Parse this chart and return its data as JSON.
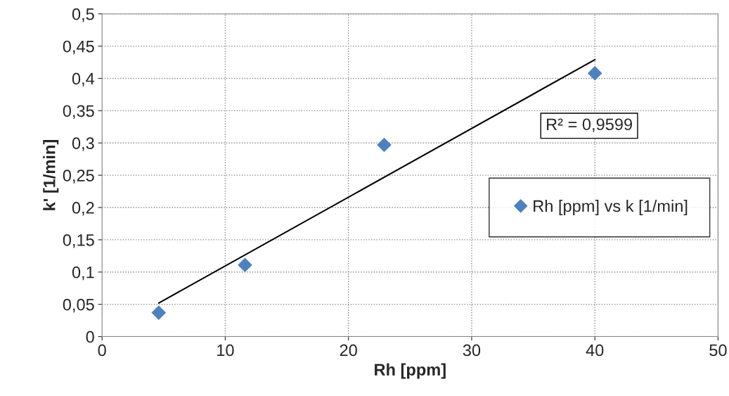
{
  "chart_data": {
    "type": "scatter",
    "xlabel": "Rh [ppm]",
    "ylabel": "k' [1/min]",
    "series": [
      {
        "name": "Rh [ppm] vs k [1/min]",
        "color": "#4f81bd",
        "marker": "diamond",
        "x": [
          4.6,
          11.6,
          22.9,
          40
        ],
        "values": [
          0.037,
          0.111,
          0.297,
          0.408
        ]
      },
      {
        "type": "line",
        "color": "#000000",
        "marker": "none",
        "x": [
          4.6,
          40
        ],
        "values": [
          0.052,
          0.429
        ]
      }
    ],
    "annotations": [
      "R² = 0,9599"
    ],
    "xlim": [
      0,
      50
    ],
    "xticks": [
      0,
      10,
      20,
      30,
      40,
      50
    ],
    "ylim": [
      0,
      0.5
    ],
    "yticks": [
      0,
      {
        "value": 0.05,
        "label": "0,05"
      },
      {
        "value": 0.1,
        "label": "0,1"
      },
      {
        "value": 0.15,
        "label": "0,15"
      },
      {
        "value": 0.2,
        "label": "0,2"
      },
      {
        "value": 0.25,
        "label": "0,25"
      },
      {
        "value": 0.3,
        "label": "0,3"
      },
      {
        "value": 0.35,
        "label": "0,35"
      },
      {
        "value": 0.4,
        "label": "0,4"
      },
      {
        "value": 0.45,
        "label": "0,45"
      },
      {
        "value": 0.5,
        "label": "0,5"
      }
    ],
    "grid": true,
    "legend": "right"
  }
}
